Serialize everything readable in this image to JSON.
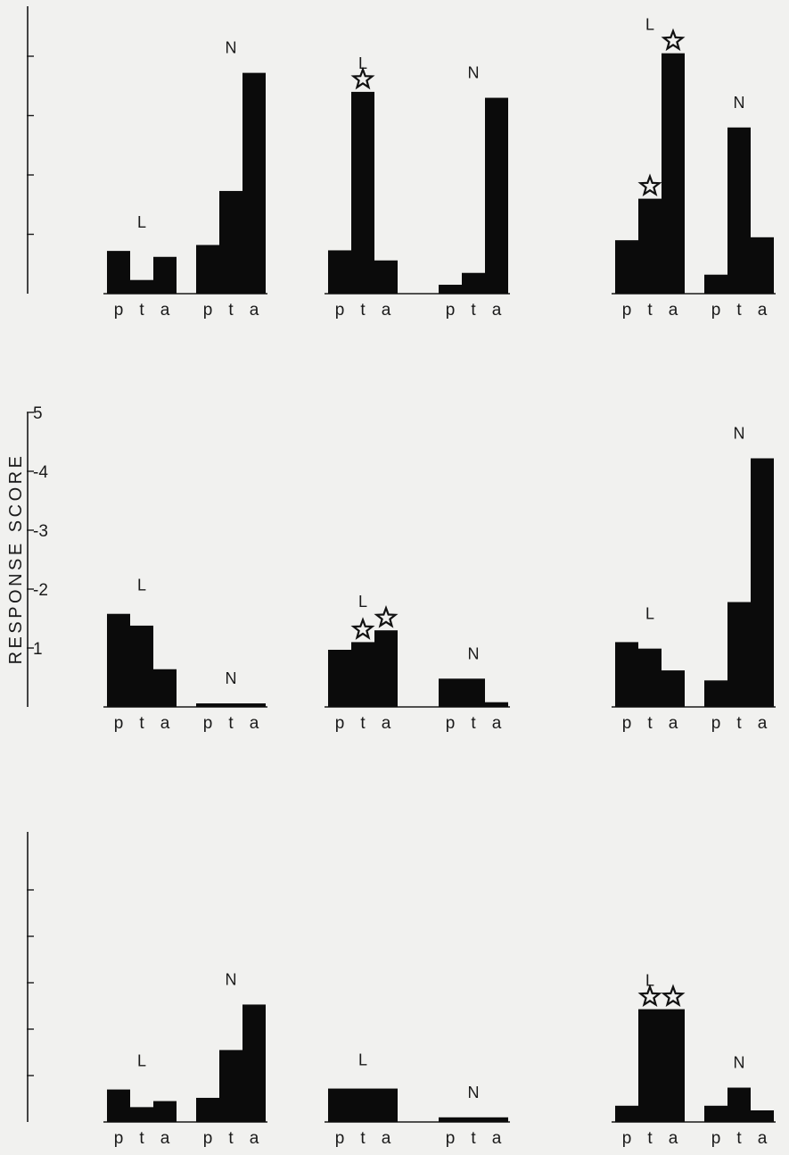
{
  "chart_data": {
    "type": "bar",
    "ylabel": "RESPONSE SCORE",
    "ylim": [
      0,
      5
    ],
    "yticks": [
      "1",
      "-2",
      "-3",
      "-4",
      "5"
    ],
    "group_letters": [
      "p",
      "t",
      "a"
    ],
    "panels": [
      {
        "row": 0,
        "col": 0,
        "L": [
          0.72,
          0.23,
          0.62
        ],
        "N": [
          0.82,
          1.73,
          3.72
        ],
        "stars_L": [],
        "stars_N": []
      },
      {
        "row": 0,
        "col": 1,
        "L": [
          0.73,
          3.4,
          0.56
        ],
        "N": [
          0.15,
          0.35,
          3.3
        ],
        "stars_L": [
          1
        ],
        "stars_N": []
      },
      {
        "row": 0,
        "col": 2,
        "L": [
          0.9,
          1.6,
          4.05
        ],
        "N": [
          0.32,
          2.8,
          0.95
        ],
        "stars_L": [
          1,
          2
        ],
        "stars_N": []
      },
      {
        "row": 1,
        "col": 0,
        "L": [
          1.58,
          1.38,
          0.64
        ],
        "N": [
          0.06,
          0.06,
          0.06
        ],
        "stars_L": [],
        "stars_N": []
      },
      {
        "row": 1,
        "col": 1,
        "L": [
          0.97,
          1.1,
          1.3
        ],
        "N": [
          0.48,
          0.48,
          0.08
        ],
        "stars_L": [
          1,
          2
        ],
        "stars_N": []
      },
      {
        "row": 1,
        "col": 2,
        "L": [
          1.1,
          0.99,
          0.62
        ],
        "N": [
          0.45,
          1.78,
          4.22
        ],
        "stars_L": [],
        "stars_N": []
      },
      {
        "row": 2,
        "col": 0,
        "L": [
          0.7,
          0.32,
          0.45
        ],
        "N": [
          0.52,
          1.55,
          2.53
        ],
        "stars_L": [],
        "stars_N": []
      },
      {
        "row": 2,
        "col": 1,
        "L": [
          0.72,
          0.72,
          0.72
        ],
        "N": [
          0.1,
          0.1,
          0.1
        ],
        "stars_L": [],
        "stars_N": []
      },
      {
        "row": 2,
        "col": 2,
        "L": [
          0.35,
          2.43,
          2.43
        ],
        "N": [
          0.35,
          0.74,
          0.25
        ],
        "stars_L": [
          1,
          2
        ],
        "stars_N": []
      }
    ]
  }
}
